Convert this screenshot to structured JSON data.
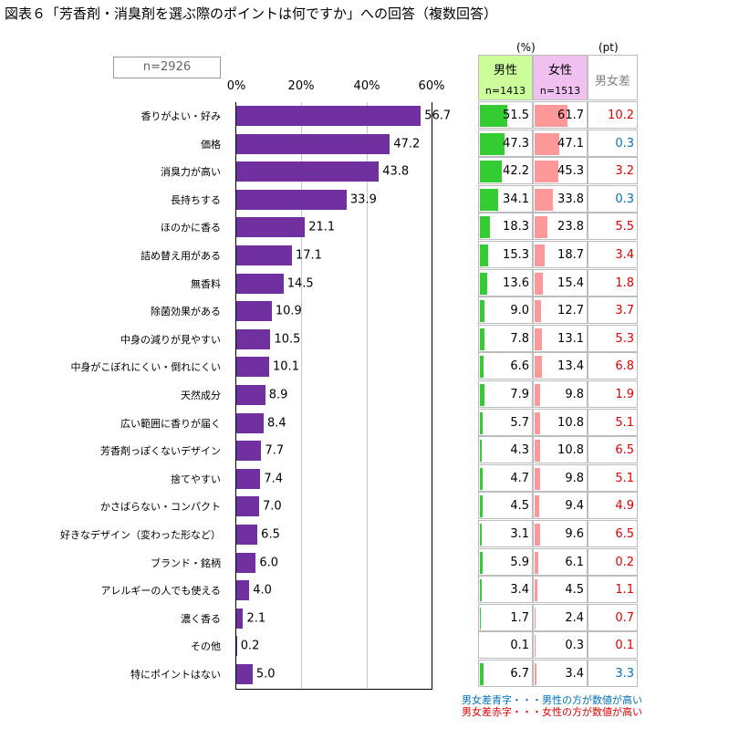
{
  "title": "図表６「芳香剤・消臭剤を選ぶ際のポイントは何ですか」への回答（複数回答）",
  "sample": "n=2926",
  "units": {
    "pct": "(%)",
    "pt": "(pt)"
  },
  "colors": {
    "bar": "#7030a0",
    "male": "#33cc33",
    "female": "#ff9999",
    "diff_red": "#e00000",
    "diff_blue": "#0070c0"
  },
  "table_headers": {
    "male": {
      "label": "男性",
      "n": "n=1413"
    },
    "female": {
      "label": "女性",
      "n": "n=1513"
    },
    "diff": {
      "label": "男女差"
    }
  },
  "notes": {
    "blue": "男女差青字・・・男性の方が数値が高い",
    "red": "男女差赤字・・・女性の方が数値が高い"
  },
  "chart_data": {
    "type": "bar",
    "orientation": "horizontal",
    "xlim": [
      0,
      60
    ],
    "ticks": [
      "0%",
      "20%",
      "40%",
      "60%"
    ],
    "categories": [
      "香りがよい・好み",
      "価格",
      "消臭力が高い",
      "長持ちする",
      "ほのかに香る",
      "詰め替え用がある",
      "無香料",
      "除菌効果がある",
      "中身の減りが見やすい",
      "中身がこぼれにくい・倒れにくい",
      "天然成分",
      "広い範囲に香りが届く",
      "芳香剤っぽくないデザイン",
      "捨てやすい",
      "かさばらない・コンパクト",
      "好きなデザイン（変わった形など）",
      "ブランド・銘柄",
      "アレルギーの人でも使える",
      "濃く香る",
      "その他",
      "特にポイントはない"
    ],
    "values": [
      "56.7",
      "47.2",
      "43.8",
      "33.9",
      "21.1",
      "17.1",
      "14.5",
      "10.9",
      "10.5",
      "10.1",
      "8.9",
      "8.4",
      "7.7",
      "7.4",
      "7.0",
      "6.5",
      "6.0",
      "4.0",
      "2.1",
      "0.2",
      "5.0"
    ],
    "male": [
      "51.5",
      "47.3",
      "42.2",
      "34.1",
      "18.3",
      "15.3",
      "13.6",
      "9.0",
      "7.8",
      "6.6",
      "7.9",
      "5.7",
      "4.3",
      "4.7",
      "4.5",
      "3.1",
      "5.9",
      "3.4",
      "1.7",
      "0.1",
      "6.7"
    ],
    "female": [
      "61.7",
      "47.1",
      "45.3",
      "33.8",
      "23.8",
      "18.7",
      "15.4",
      "12.7",
      "13.1",
      "13.4",
      "9.8",
      "10.8",
      "10.8",
      "9.8",
      "9.4",
      "9.6",
      "6.1",
      "4.5",
      "2.4",
      "0.3",
      "3.4"
    ],
    "diff": [
      "10.2",
      "0.3",
      "3.2",
      "0.3",
      "5.5",
      "3.4",
      "1.8",
      "3.7",
      "5.3",
      "6.8",
      "1.9",
      "5.1",
      "6.5",
      "5.1",
      "4.9",
      "6.5",
      "0.2",
      "1.1",
      "0.7",
      "0.1",
      "3.3"
    ]
  }
}
